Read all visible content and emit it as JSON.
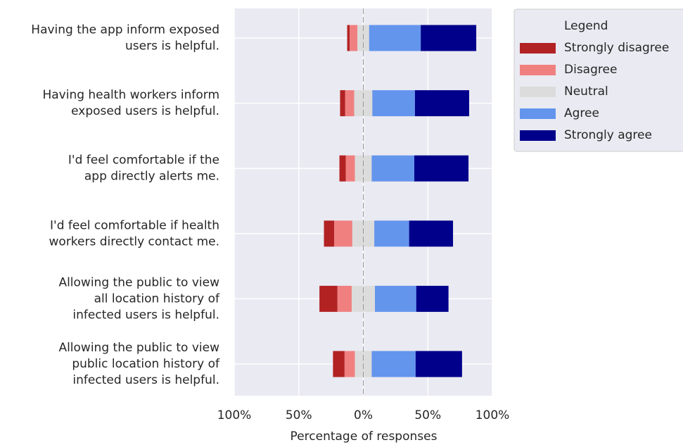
{
  "chart_data": {
    "type": "diverging_stacked_bar",
    "categories": [
      [
        "Having the app inform exposed",
        "users is helpful."
      ],
      [
        "Having health workers inform",
        "exposed users is helpful."
      ],
      [
        "I'd feel comfortable if the",
        "app directly alerts me."
      ],
      [
        "I'd feel comfortable if health",
        "workers directly contact me."
      ],
      [
        "Allowing the public to view",
        "all location history of",
        "infected users is helpful."
      ],
      [
        "Allowing the public to view",
        "public location history of",
        "infected users is helpful."
      ]
    ],
    "series": [
      {
        "name": "Strongly disagree",
        "color": "#b22222",
        "values": [
          2,
          4,
          5,
          8,
          14,
          9
        ]
      },
      {
        "name": "Disagree",
        "color": "#f08080",
        "values": [
          6,
          7,
          7,
          14,
          11,
          8
        ]
      },
      {
        "name": "Neutral",
        "color": "#dcdcdc",
        "values": [
          9,
          14,
          13,
          17,
          18,
          13
        ]
      },
      {
        "name": "Agree",
        "color": "#6495ed",
        "values": [
          40,
          33,
          33,
          27,
          32,
          34
        ]
      },
      {
        "name": "Strongly agree",
        "color": "#00008b",
        "values": [
          43,
          42,
          42,
          34,
          25,
          36
        ]
      }
    ],
    "xlabel": "Percentage of responses",
    "xlim": [
      -100,
      100
    ],
    "xticks": [
      {
        "value": -100,
        "label": "100%"
      },
      {
        "value": -50,
        "label": "50%"
      },
      {
        "value": 0,
        "label": "0%"
      },
      {
        "value": 50,
        "label": "50%"
      },
      {
        "value": 100,
        "label": "100%"
      }
    ],
    "legend_title": "Legend",
    "legend_position": "upper right outside",
    "grid": true
  }
}
